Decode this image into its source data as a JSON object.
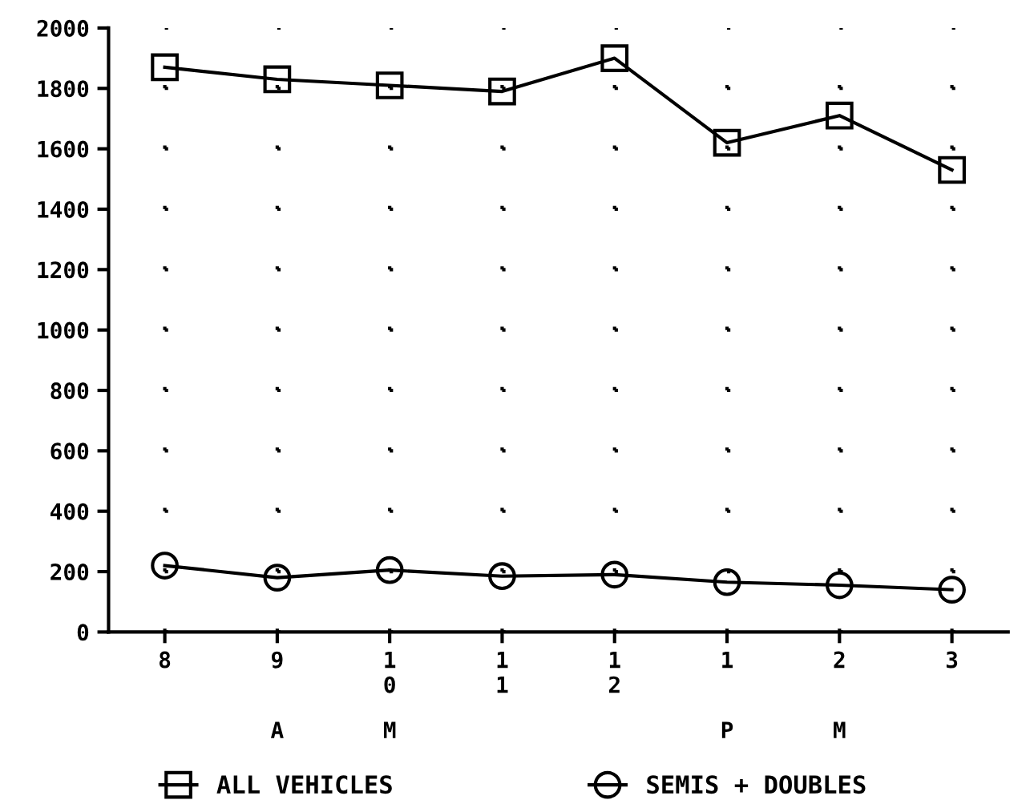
{
  "chart_data": {
    "type": "line",
    "categories": [
      "8",
      "9",
      "10",
      "11",
      "12",
      "1",
      "2",
      "3"
    ],
    "series": [
      {
        "name": "ALL VEHICLES",
        "color": "#000000",
        "marker": "square",
        "values": [
          1870,
          1830,
          1810,
          1790,
          1900,
          1620,
          1710,
          1530
        ]
      },
      {
        "name": "SEMIS + DOUBLES",
        "color": "#000000",
        "marker": "circle",
        "values": [
          220,
          180,
          205,
          185,
          190,
          165,
          155,
          140
        ]
      }
    ],
    "ylim": [
      0,
      2000
    ],
    "yticks": [
      0,
      200,
      400,
      600,
      800,
      1000,
      1200,
      1400,
      1600,
      1800,
      2000
    ],
    "grid": true,
    "legend": "bottom",
    "line_style": "solid",
    "annotations": [
      "A",
      "M",
      "P",
      "M"
    ]
  }
}
